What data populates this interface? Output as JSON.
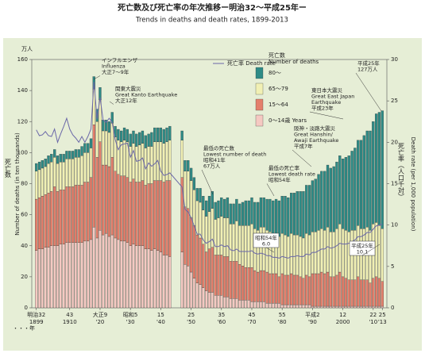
{
  "chart_data": {
    "type": "bar",
    "title": "死亡数及び死亡率の年次推移ー明治32～平成25年ー",
    "subtitle": "Trends in deaths and death rates, 1899-2013",
    "y_unit": "万人",
    "y_label": "Number of deaths (in ten thousands)",
    "y_label_ja": "死亡数",
    "y2_label": "Death rate (per 1,000 population)",
    "y2_label_ja": "死亡率（人口千対）",
    "x_label": "・・・年",
    "legend_title": [
      "死亡数",
      "Number of deaths"
    ],
    "x": [
      1899,
      1900,
      1901,
      1902,
      1903,
      1904,
      1905,
      1906,
      1907,
      1908,
      1909,
      1910,
      1911,
      1912,
      1913,
      1914,
      1915,
      1916,
      1917,
      1918,
      1919,
      1920,
      1921,
      1922,
      1923,
      1924,
      1925,
      1926,
      1927,
      1928,
      1929,
      1930,
      1931,
      1932,
      1933,
      1934,
      1935,
      1936,
      1937,
      1938,
      1939,
      1940,
      1941,
      1942,
      1943,
      1947,
      1948,
      1949,
      1950,
      1951,
      1952,
      1953,
      1954,
      1955,
      1956,
      1957,
      1958,
      1959,
      1960,
      1961,
      1962,
      1963,
      1964,
      1965,
      1966,
      1967,
      1968,
      1969,
      1970,
      1971,
      1972,
      1973,
      1974,
      1975,
      1976,
      1977,
      1978,
      1979,
      1980,
      1981,
      1982,
      1983,
      1984,
      1985,
      1986,
      1987,
      1988,
      1989,
      1990,
      1991,
      1992,
      1993,
      1994,
      1995,
      1996,
      1997,
      1998,
      1999,
      2000,
      2001,
      2002,
      2003,
      2004,
      2005,
      2006,
      2007,
      2008,
      2009,
      2010,
      2011,
      2012,
      2013
    ],
    "series": [
      {
        "name": "0～14歳 Years",
        "color": "#f5c9c2",
        "values": [
          37,
          38,
          38,
          39,
          39,
          40,
          40,
          40,
          41,
          41,
          42,
          42,
          42,
          42,
          42,
          42,
          43,
          43,
          44,
          52,
          45,
          50,
          47,
          48,
          46,
          47,
          45,
          44,
          43,
          43,
          42,
          40,
          41,
          40,
          40,
          40,
          38,
          38,
          37,
          38,
          37,
          36,
          34,
          34,
          33,
          36,
          28,
          27,
          23,
          19,
          16,
          15,
          13,
          11,
          10,
          10,
          8,
          8,
          8,
          7,
          7,
          6,
          6,
          6,
          5,
          5,
          5,
          5,
          4,
          4,
          4,
          4,
          4,
          3,
          3,
          3,
          3,
          3,
          2,
          2,
          2,
          2,
          2,
          2,
          2,
          2,
          2,
          2,
          1,
          1,
          1,
          1,
          1,
          1,
          1,
          1,
          1,
          1,
          1,
          1,
          1,
          1,
          1,
          1,
          1,
          1,
          1,
          1,
          1,
          1,
          1,
          1
        ]
      },
      {
        "name": "15～64",
        "color": "#e47f6c",
        "values": [
          33,
          33,
          34,
          34,
          35,
          35,
          38,
          35,
          35,
          35,
          36,
          36,
          36,
          37,
          37,
          37,
          38,
          38,
          40,
          66,
          52,
          57,
          45,
          44,
          45,
          50,
          43,
          42,
          42,
          42,
          42,
          41,
          42,
          41,
          41,
          42,
          41,
          42,
          43,
          44,
          45,
          46,
          47,
          48,
          49,
          48,
          37,
          37,
          35,
          34,
          31,
          30,
          28,
          25,
          28,
          29,
          26,
          26,
          26,
          26,
          26,
          24,
          24,
          24,
          23,
          22,
          21,
          21,
          22,
          20,
          19,
          20,
          20,
          20,
          19,
          19,
          19,
          17,
          20,
          19,
          19,
          20,
          19,
          19,
          18,
          17,
          19,
          18,
          21,
          21,
          21,
          22,
          21,
          22,
          19,
          19,
          20,
          22,
          19,
          18,
          17,
          17,
          17,
          19,
          17,
          17,
          17,
          15,
          18,
          19,
          18,
          16
        ]
      },
      {
        "name": "65～79",
        "color": "#f1f0b4",
        "values": [
          18,
          18,
          18,
          18,
          19,
          19,
          19,
          18,
          18,
          18,
          18,
          18,
          18,
          18,
          18,
          19,
          19,
          19,
          19,
          23,
          23,
          27,
          22,
          22,
          22,
          22,
          22,
          22,
          22,
          23,
          23,
          23,
          23,
          23,
          24,
          24,
          24,
          24,
          24,
          25,
          25,
          25,
          25,
          25,
          26,
          24,
          23,
          24,
          24,
          23,
          22,
          23,
          22,
          23,
          24,
          25,
          23,
          24,
          25,
          25,
          25,
          24,
          24,
          26,
          25,
          26,
          27,
          27,
          28,
          27,
          27,
          28,
          28,
          27,
          27,
          26,
          26,
          26,
          26,
          26,
          25,
          26,
          26,
          26,
          26,
          26,
          27,
          27,
          27,
          27,
          28,
          28,
          28,
          29,
          29,
          29,
          30,
          31,
          31,
          31,
          31,
          32,
          32,
          33,
          33,
          33,
          34,
          34,
          35,
          35,
          34,
          34
        ]
      },
      {
        "name": "80～",
        "color": "#2e8b86",
        "values": [
          5,
          5,
          5,
          5,
          5,
          5,
          5,
          5,
          5,
          5,
          5,
          5,
          5,
          5,
          5,
          6,
          6,
          6,
          6,
          8,
          8,
          8,
          7,
          7,
          7,
          7,
          7,
          7,
          7,
          8,
          8,
          8,
          8,
          8,
          8,
          8,
          8,
          8,
          9,
          9,
          9,
          9,
          9,
          9,
          9,
          6,
          7,
          7,
          8,
          8,
          8,
          9,
          9,
          10,
          10,
          11,
          11,
          11,
          12,
          12,
          13,
          13,
          13,
          14,
          14,
          15,
          16,
          16,
          17,
          17,
          18,
          19,
          19,
          20,
          21,
          21,
          22,
          23,
          24,
          25,
          25,
          26,
          27,
          28,
          29,
          30,
          31,
          32,
          33,
          34,
          36,
          37,
          38,
          40,
          41,
          42,
          43,
          44,
          45,
          47,
          49,
          51,
          53,
          55,
          57,
          60,
          62,
          64,
          66,
          70,
          73,
          76
        ]
      },
      {
        "name": "死亡率 Death rate",
        "type": "line",
        "axis": "y2",
        "color": "#6a67a8",
        "values": [
          21.5,
          20.8,
          20.9,
          21.3,
          20.8,
          20.7,
          21.6,
          20.0,
          21.0,
          21.9,
          22.9,
          21.6,
          20.9,
          20.5,
          20.0,
          20.7,
          20.0,
          20.7,
          21.6,
          27.3,
          22.8,
          25.4,
          22.7,
          22.4,
          22.9,
          22.4,
          20.3,
          19.1,
          19.7,
          19.8,
          19.9,
          18.2,
          19.0,
          17.7,
          17.8,
          18.1,
          16.8,
          17.5,
          17.1,
          17.4,
          17.8,
          16.5,
          16.0,
          16.1,
          16.3,
          14.6,
          11.9,
          11.6,
          10.9,
          9.9,
          8.9,
          8.9,
          8.2,
          7.8,
          8.0,
          8.3,
          7.4,
          7.4,
          7.6,
          7.4,
          7.5,
          7.0,
          6.9,
          7.1,
          6.8,
          6.8,
          6.8,
          6.8,
          6.9,
          6.6,
          6.5,
          6.6,
          6.5,
          6.3,
          6.3,
          6.1,
          6.1,
          6.0,
          6.2,
          6.1,
          6.0,
          6.2,
          6.2,
          6.3,
          6.2,
          6.2,
          6.5,
          6.4,
          6.7,
          6.7,
          6.9,
          7.1,
          7.1,
          7.4,
          7.2,
          7.3,
          7.5,
          7.8,
          7.7,
          7.7,
          7.8,
          8.0,
          8.2,
          8.6,
          8.6,
          8.8,
          9.1,
          9.1,
          9.5,
          9.9,
          10.0,
          10.1
        ]
      }
    ],
    "xlim": [
      1897.5,
      2014.5
    ],
    "xticks": [
      {
        "value": 1899,
        "label": "明治32"
      },
      {
        "value": 1910,
        "label": "43"
      },
      {
        "value": 1920,
        "label": "大正9"
      },
      {
        "value": 1930,
        "label": "昭和5"
      },
      {
        "value": 1940,
        "label": "15"
      },
      {
        "value": 1950,
        "label": "25"
      },
      {
        "value": 1960,
        "label": "35"
      },
      {
        "value": 1970,
        "label": "45"
      },
      {
        "value": 1980,
        "label": "55"
      },
      {
        "value": 1990,
        "label": "平成2"
      },
      {
        "value": 2000,
        "label": "12"
      },
      {
        "value": 2010,
        "label": "22"
      },
      {
        "value": 2013,
        "label": "25"
      }
    ],
    "xticks2": [
      1899,
      1910,
      {
        "value": 1920,
        "label": "'20"
      },
      {
        "value": 1930,
        "label": "'30"
      },
      {
        "value": 1940,
        "label": "'40"
      },
      {
        "value": 1950,
        "label": "'50"
      },
      {
        "value": 1960,
        "label": "'60"
      },
      {
        "value": 1970,
        "label": "'70"
      },
      {
        "value": 1980,
        "label": "'80"
      },
      {
        "value": 1990,
        "label": "'90"
      },
      2000,
      {
        "value": 2010,
        "label": "'10"
      },
      {
        "value": 2013,
        "label": "'13"
      }
    ],
    "ylim": [
      0,
      160
    ],
    "yticks": [
      0,
      20,
      40,
      60,
      80,
      100,
      120,
      140,
      160
    ],
    "y2lim": [
      0,
      30
    ],
    "y2ticks": [
      0,
      5,
      10,
      15,
      20,
      25,
      30
    ],
    "annotations": [
      [
        "インフルエンザ",
        "Influenza",
        "大正7～9年"
      ],
      [
        "関東大震災",
        "Great Kanto Earthquake",
        "大正12年"
      ],
      [
        "最低の死亡数",
        "Lowest number of death",
        "昭和41年",
        "67万人"
      ],
      [
        "最低の死亡率",
        "Lowest death rate",
        "昭和54年"
      ],
      [
        "阪神・淡路大震災",
        "Great Hanshin/",
        "Awaji Earthquake",
        "平成7年"
      ],
      [
        "東日本大震災",
        "Great East Japan",
        "Earthquake",
        "平成23年"
      ],
      [
        "平成25年",
        "127万人"
      ],
      [
        "昭和54年",
        "6.0"
      ],
      [
        "平成25年",
        "10.1"
      ]
    ]
  }
}
